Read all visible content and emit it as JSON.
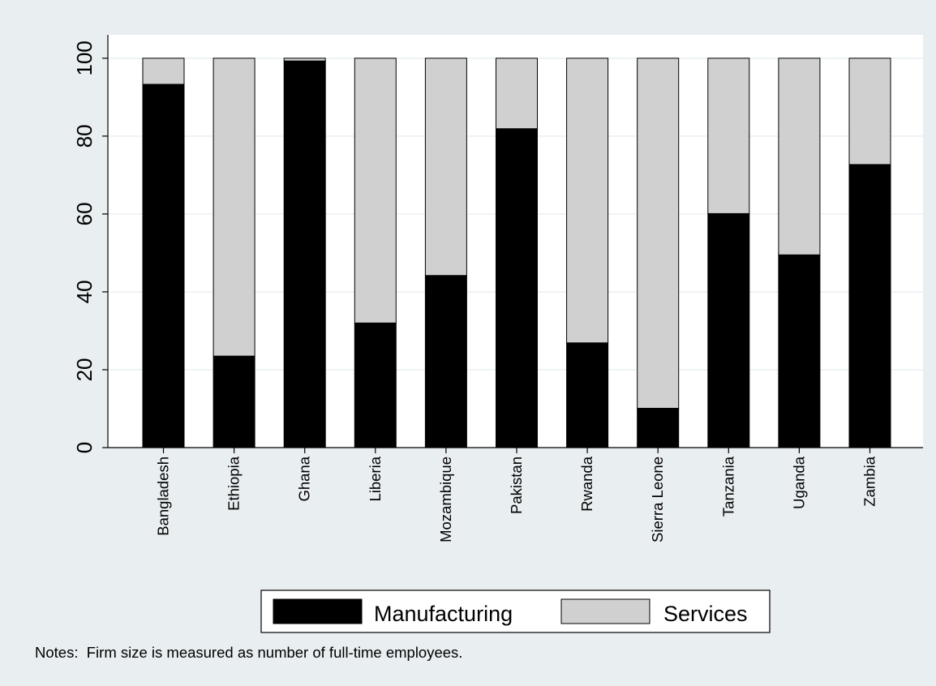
{
  "chart_data": {
    "type": "bar",
    "stacked": true,
    "categories": [
      "Bangladesh",
      "Ethiopia",
      "Ghana",
      "Liberia",
      "Mozambique",
      "Pakistan",
      "Rwanda",
      "Sierra Leone",
      "Tanzania",
      "Uganda",
      "Zambia"
    ],
    "series": [
      {
        "name": "Manufacturing",
        "color": "#000000",
        "values": [
          93.3,
          23.5,
          99.3,
          32.0,
          44.2,
          81.9,
          26.9,
          10.1,
          60.1,
          49.5,
          72.7
        ]
      },
      {
        "name": "Services",
        "color": "#d0d0d0",
        "values": [
          6.7,
          76.5,
          0.7,
          68.0,
          55.8,
          18.1,
          73.1,
          89.9,
          39.9,
          50.5,
          27.3
        ]
      }
    ],
    "yticks": [
      0,
      20,
      40,
      60,
      80,
      100
    ],
    "ylim": [
      0,
      106
    ],
    "grid": true,
    "legend_position": "bottom-center",
    "colors": {
      "outer_background": "#e9eef1",
      "plot_background": "#ffffff",
      "grid": "#e6eef0"
    },
    "note": "Notes:  Firm size is measured as number of full-time employees."
  }
}
